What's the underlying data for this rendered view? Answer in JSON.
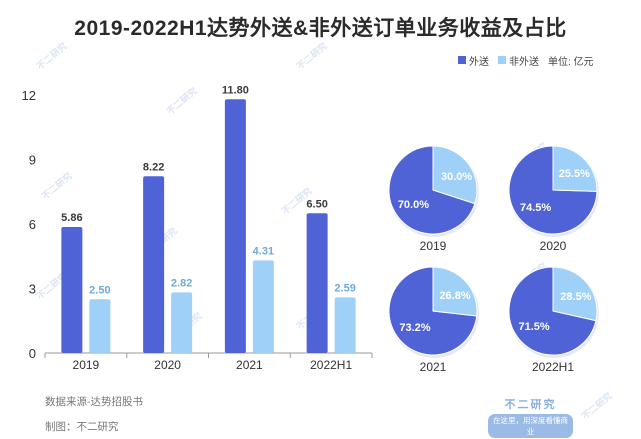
{
  "title": "2019-2022H1达势外送&非外送订单业务收益及占比",
  "legend": {
    "items": [
      {
        "label": "外送",
        "color": "#4f63d6"
      },
      {
        "label": "非外送",
        "color": "#9fd0f7"
      }
    ],
    "unit": "单位: 亿元"
  },
  "footer": {
    "source": "数据来源-达势招股书",
    "maker": "制图：不二研究"
  },
  "brand": {
    "name": "不二研究",
    "slogan": "在这里，用深度看懂商业"
  },
  "watermark": "不二研究",
  "chart_data": [
    {
      "type": "bar",
      "categories": [
        "2019",
        "2020",
        "2021",
        "2022H1"
      ],
      "series": [
        {
          "name": "外送",
          "values": [
            5.86,
            8.22,
            11.8,
            6.5
          ],
          "labels": [
            "5.86",
            "8.22",
            "11.80",
            "6.50"
          ],
          "color": "#4f63d6"
        },
        {
          "name": "非外送",
          "values": [
            2.5,
            2.82,
            4.31,
            2.59
          ],
          "labels": [
            "2.50",
            "2.82",
            "4.31",
            "2.59"
          ],
          "color": "#9fd0f7"
        }
      ],
      "yticks": [
        "0",
        "3",
        "6",
        "9",
        "12"
      ],
      "ylim": [
        0,
        12
      ]
    },
    {
      "type": "pie",
      "title": "2019",
      "slices": [
        {
          "label": "外送",
          "value": 70.0,
          "text": "70.0%"
        },
        {
          "label": "非外送",
          "value": 30.0,
          "text": "30.0%"
        }
      ]
    },
    {
      "type": "pie",
      "title": "2020",
      "slices": [
        {
          "label": "外送",
          "value": 74.5,
          "text": "74.5%"
        },
        {
          "label": "非外送",
          "value": 25.5,
          "text": "25.5%"
        }
      ]
    },
    {
      "type": "pie",
      "title": "2021",
      "slices": [
        {
          "label": "外送",
          "value": 73.2,
          "text": "73.2%"
        },
        {
          "label": "非外送",
          "value": 26.8,
          "text": "26.8%"
        }
      ]
    },
    {
      "type": "pie",
      "title": "2022H1",
      "slices": [
        {
          "label": "外送",
          "value": 71.5,
          "text": "71.5%"
        },
        {
          "label": "非外送",
          "value": 28.5,
          "text": "28.5%"
        }
      ]
    }
  ]
}
